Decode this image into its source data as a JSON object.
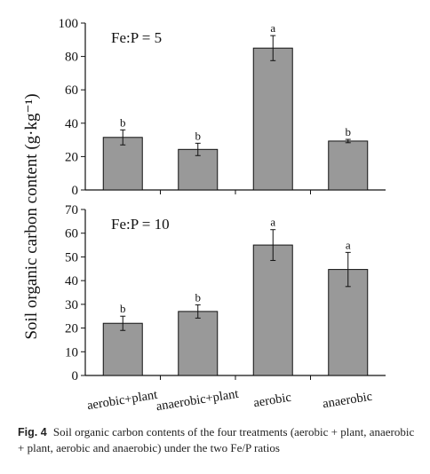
{
  "chart_data": [
    {
      "type": "bar",
      "panel_label": "Fe:P = 5",
      "ylabel": "Soil organic carbon content (g·kg⁻¹)",
      "ylim": [
        0,
        100
      ],
      "yticks": [
        0,
        20,
        40,
        60,
        80,
        100
      ],
      "categories": [
        "aerobic+plant",
        "anaerobic+plant",
        "aerobic",
        "anaerobic"
      ],
      "values": [
        31.5,
        24.3,
        85.0,
        29.3
      ],
      "errors": [
        4.5,
        3.7,
        7.5,
        1.0
      ],
      "labels": [
        "b",
        "b",
        "a",
        "b"
      ],
      "grid": false
    },
    {
      "type": "bar",
      "panel_label": "Fe:P = 10",
      "ylim": [
        0,
        70
      ],
      "yticks": [
        0,
        10,
        20,
        30,
        40,
        50,
        60,
        70
      ],
      "categories": [
        "aerobic+plant",
        "anaerobic+plant",
        "aerobic",
        "anaerobic"
      ],
      "values": [
        22.0,
        27.0,
        55.0,
        44.7
      ],
      "errors": [
        3.0,
        2.8,
        6.5,
        7.2
      ],
      "labels": [
        "b",
        "b",
        "a",
        "a"
      ],
      "grid": false
    }
  ],
  "caption": {
    "label": "Fig. 4",
    "text": "Soil organic carbon contents of the four treatments (aerobic + plant, anaerobic + plant, aerobic and anaerobic) under the two Fe/P ratios"
  },
  "colors": {
    "bar": "#999999",
    "axis": "#111111"
  }
}
